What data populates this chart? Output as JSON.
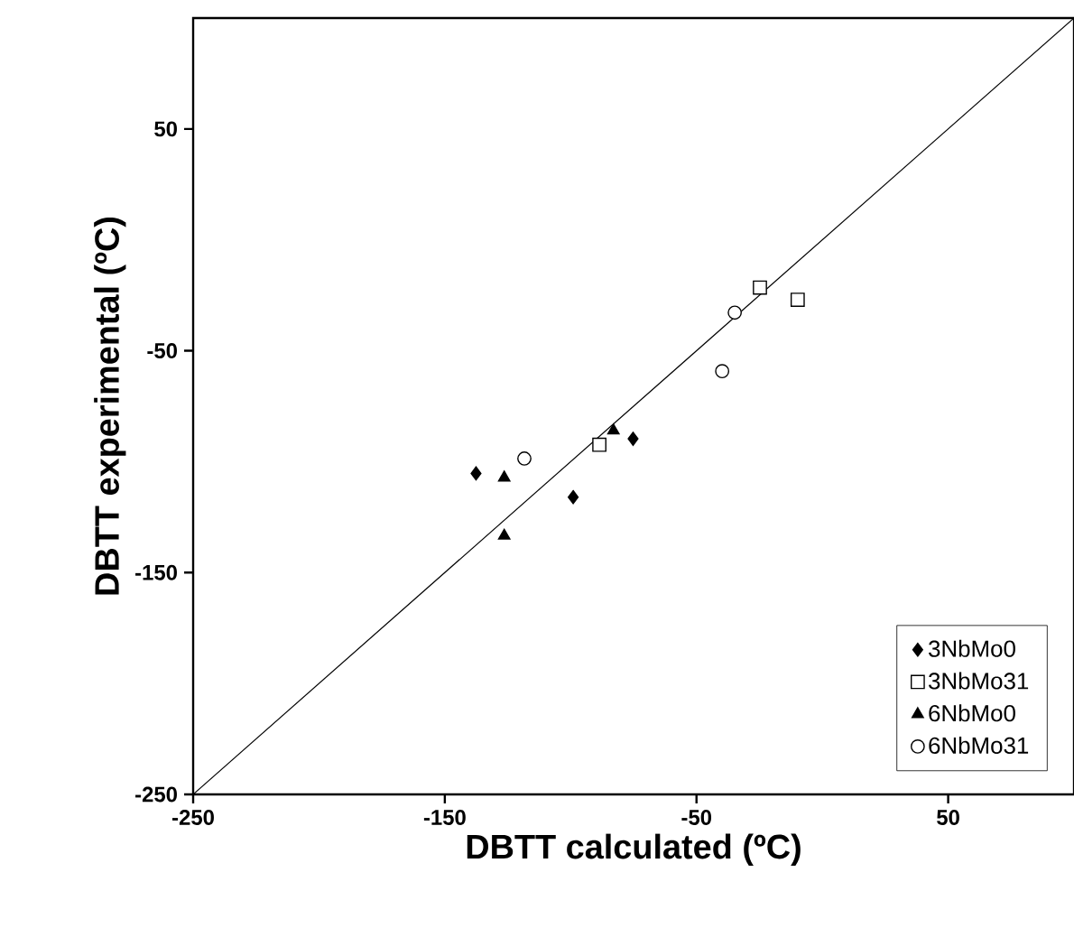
{
  "chart_data": {
    "type": "scatter",
    "xlabel": "DBTT calculated (ºC)",
    "ylabel": "DBTT experimental (ºC)",
    "xlim": [
      -250,
      100
    ],
    "ylim": [
      -250,
      100
    ],
    "xticks": [
      -250,
      -150,
      -50,
      50
    ],
    "yticks": [
      -250,
      -150,
      -50,
      50
    ],
    "grid": false,
    "legend": "bottom right",
    "series": [
      {
        "name": "3NbMo0",
        "color": "#000000",
        "marker": "diamond",
        "x": [
          -137.6,
          -99,
          -75.2
        ],
        "values": [
          -105.3,
          -116,
          -89.7
        ]
      },
      {
        "name": "3NbMo31",
        "color": "#000000",
        "marker": "square",
        "x": [
          -88.6,
          -24.8,
          -9.8
        ],
        "values": [
          -92.4,
          -21.5,
          -27
        ]
      },
      {
        "name": "6NbMo0",
        "color": "#000000",
        "marker": "triangle",
        "x": [
          -126.4,
          -126.4,
          -83
        ],
        "values": [
          -107.2,
          -133.4,
          -86
        ]
      },
      {
        "name": "6NbMo31",
        "color": "#000000",
        "marker": "circle",
        "x": [
          -118.4,
          -34.8,
          -39.8
        ],
        "values": [
          -98.6,
          -32.8,
          -59.2
        ]
      },
      {
        "type": "line",
        "color": "#000000",
        "marker": "none",
        "x": [
          -250,
          100
        ],
        "values": [
          -250,
          100
        ]
      }
    ]
  }
}
